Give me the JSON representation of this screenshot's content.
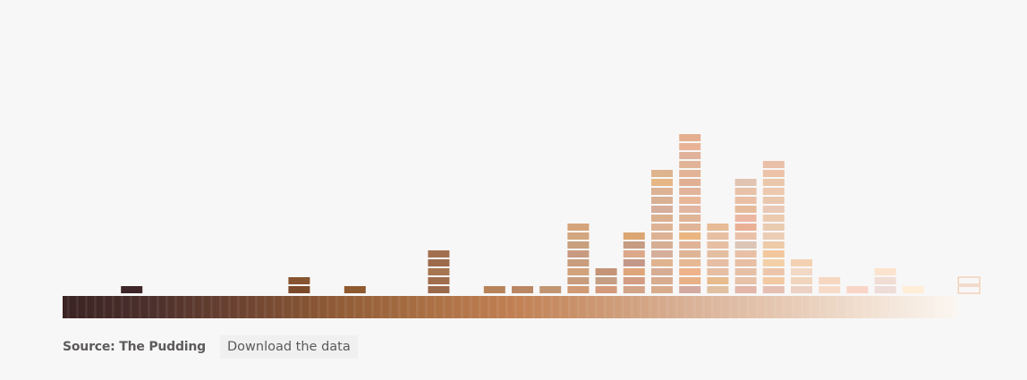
{
  "chart_data": {
    "type": "bar",
    "title": "",
    "xlabel": "",
    "ylabel": "",
    "grid": false,
    "legend": "none",
    "categories": [
      "#4a2e2c",
      "#3d2220",
      "#432826",
      "#472a28",
      "#4d2f2a",
      "#55362e",
      "#603e30",
      "#6d4733",
      "#7a4f30",
      "#86572f",
      "#8d5a32",
      "#93603a",
      "#9a6640",
      "#a56b3f",
      "#ae7446",
      "#b47c4e",
      "#bc8453",
      "#c08b5d",
      "#c49168",
      "#c59a73",
      "#c9a07e",
      "#d1a788",
      "#d4ae91",
      "#d8b69b",
      "#dcbda6",
      "#e0c3ad",
      "#e4c9b6",
      "#e7d0be",
      "#ead7c6",
      "#ecddd0",
      "#eee3d8",
      "#f1e9e0"
    ],
    "values": [
      0,
      1,
      0,
      0,
      0,
      0,
      0,
      2,
      0,
      1,
      0,
      0,
      5,
      0,
      1,
      1,
      1,
      8,
      3,
      7,
      14,
      18,
      8,
      13,
      15,
      4,
      2,
      1,
      3,
      1,
      0,
      2
    ],
    "ylim": [
      0,
      18
    ],
    "stack_colors": [
      [],
      [
        "#3e2528"
      ],
      [],
      [],
      [],
      [],
      [],
      [
        "#7b4a2b",
        "#875431"
      ],
      [],
      [
        "#8e5a30"
      ],
      [],
      [],
      [
        "#9b6a4c",
        "#a06d4d",
        "#a7754f",
        "#9d6a4c",
        "#a3704f"
      ],
      [],
      [
        "#b7835a"
      ],
      [
        "#ba8765"
      ],
      [
        "#c19571"
      ],
      [
        "#cf9a74",
        "#c79d7e",
        "#d2a27c",
        "#c99d7e",
        "#c99a82",
        "#c8a07d",
        "#d2a67e",
        "#d6a47b"
      ],
      [
        "#d39a7b",
        "#c49e84",
        "#c49477"
      ],
      [
        "#d2a488",
        "#d29d84",
        "#dfa57a",
        "#c49888",
        "#dba88a",
        "#c69c83",
        "#dba672"
      ],
      [
        "#d8ac8b",
        "#d7ac8f",
        "#d7ac94",
        "#e0b38f",
        "#d6ae9c",
        "#d6ae93",
        "#ddb294",
        "#deb395",
        "#dbb08f",
        "#d6ae9c",
        "#d8b094",
        "#ddb294",
        "#e6b786",
        "#deb48f"
      ],
      [
        "#d2aaa0",
        "#e8b185",
        "#eeb38a",
        "#e7b894",
        "#dfb496",
        "#e0b497",
        "#eab67f",
        "#e1b597",
        "#e0b497",
        "#e1b59f",
        "#e8b798",
        "#e1b49b",
        "#e1b094",
        "#e2b396",
        "#e2b497",
        "#e0b29b",
        "#e9b496",
        "#e4af8f"
      ],
      [
        "#e0c0a0",
        "#e8bb8c",
        "#e5bea4",
        "#e6bea4",
        "#e3bea1",
        "#e6bfa3",
        "#e6bfa3",
        "#e6bb95"
      ],
      [
        "#e2b6a8",
        "#e7c2a8",
        "#e6c0a6",
        "#e8bfa5",
        "#e7c0a5",
        "#dcc5b5",
        "#e8c1a8",
        "#e9b095",
        "#ecb7a2",
        "#e6bb9c",
        "#e8bfa5",
        "#e8c2a8",
        "#e1c4b2"
      ],
      [
        "#e5c0b2",
        "#f1c9a2",
        "#ecc6aa",
        "#f3d0a8",
        "#f2c79e",
        "#edcba8",
        "#ebcdb5",
        "#e9cbb0",
        "#eccaae",
        "#e9c9b6",
        "#e9c7ae",
        "#edc8ae",
        "#eac7aa",
        "#ecc2a8",
        "#e9bfa7"
      ],
      [
        "#ecd1c4",
        "#f1d5bc",
        "#f1d9c6",
        "#f3d1b2"
      ],
      [
        "#f7dbc8",
        "#f6d8c2"
      ],
      [
        "#f8d5c6"
      ],
      [
        "#eedcd8",
        "#f0ddd4",
        "#fce3cd"
      ],
      [
        "#ffeed8"
      ],
      [],
      [
        "#f6e7e0",
        "#f6e7e0"
      ]
    ],
    "outlined": [
      false,
      false,
      false,
      false,
      false,
      false,
      false,
      false,
      false,
      false,
      false,
      false,
      false,
      false,
      false,
      false,
      false,
      false,
      false,
      false,
      false,
      false,
      false,
      false,
      false,
      false,
      false,
      false,
      false,
      false,
      false,
      true
    ],
    "gradient_stops": [
      "#3a2322",
      "#4c302c",
      "#6d4331",
      "#8e5a35",
      "#a86e43",
      "#c07f52",
      "#cc9873",
      "#d9b196",
      "#e5c7b1",
      "#f1e0d1",
      "#fbf6f1"
    ]
  },
  "footer": {
    "source": "Source: The Pudding",
    "download_label": "Download the data"
  }
}
